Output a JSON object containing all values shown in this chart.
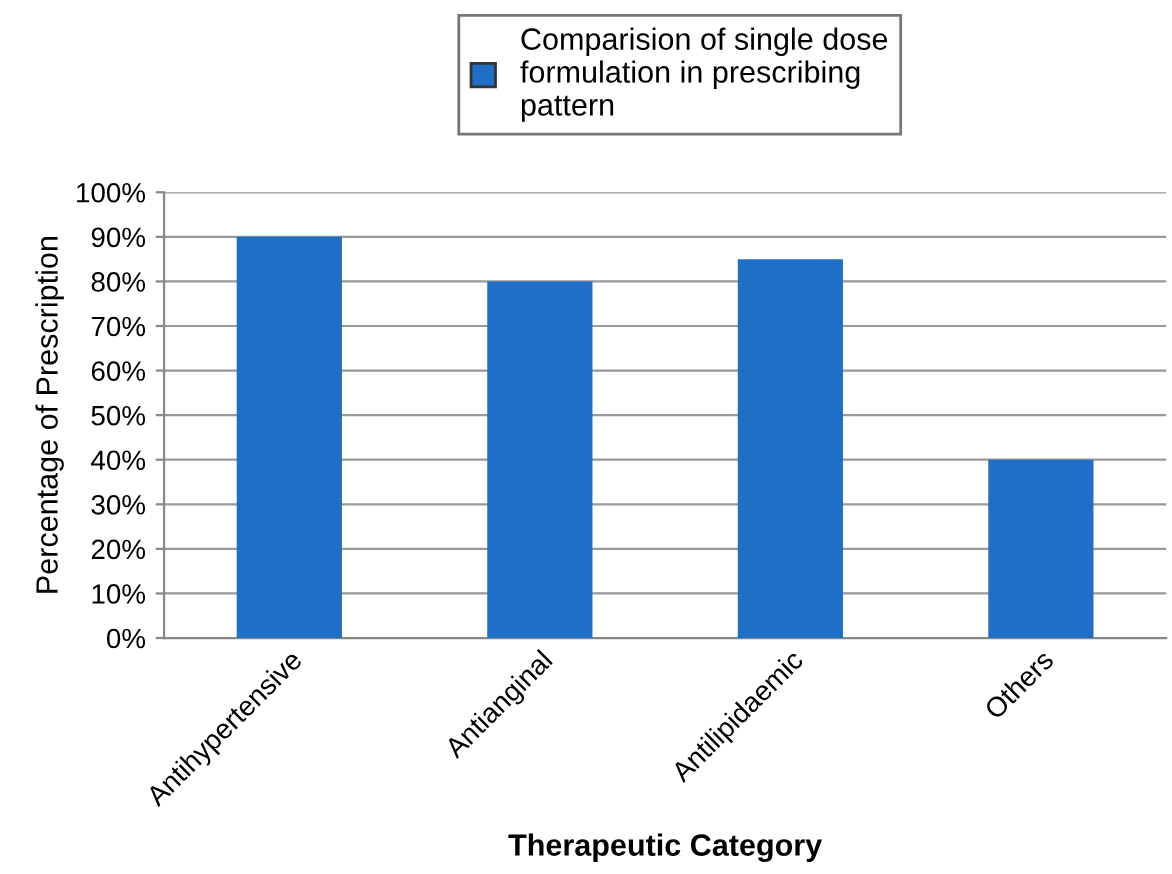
{
  "chart_data": {
    "type": "bar",
    "xlabel": "Therapeutic Category",
    "ylabel": "Percentage of Prescription",
    "categories": [
      "Antihypertensive",
      "Antianginal",
      "Antilipidaemic",
      "Others"
    ],
    "series": [
      {
        "name": "Comparision of single dose formulation in prescribing pattern",
        "color": "#1f6fc6",
        "values": [
          90,
          80,
          85,
          40
        ]
      }
    ],
    "ylim": [
      0,
      100
    ],
    "yticks": [
      {
        "value": 0,
        "label": "0%"
      },
      {
        "value": 10,
        "label": "10%"
      },
      {
        "value": 20,
        "label": "20%"
      },
      {
        "value": 30,
        "label": "30%"
      },
      {
        "value": 40,
        "label": "40%"
      },
      {
        "value": 50,
        "label": "50%"
      },
      {
        "value": 60,
        "label": "60%"
      },
      {
        "value": 70,
        "label": "70%"
      },
      {
        "value": 80,
        "label": "80%"
      },
      {
        "value": 90,
        "label": "90%"
      },
      {
        "value": 100,
        "label": "100%"
      }
    ],
    "grid": "y",
    "legend": "top"
  }
}
